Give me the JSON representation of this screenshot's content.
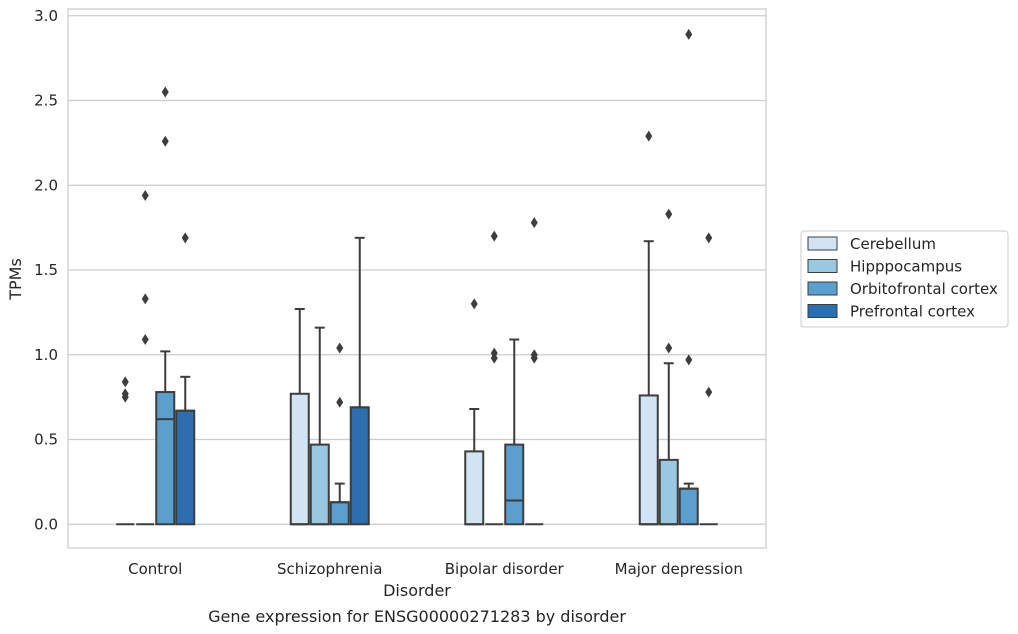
{
  "chart_data": {
    "type": "box",
    "xlabel": "Disorder",
    "ylabel": "TPMs",
    "caption": "Gene expression for ENSG00000271283 by disorder",
    "categories": [
      "Control",
      "Schizophrenia",
      "Bipolar disorder",
      "Major depression"
    ],
    "yticks": [
      "0.0",
      "0.5",
      "1.0",
      "1.5",
      "2.0",
      "2.5",
      "3.0"
    ],
    "ylim": [
      -0.14,
      3.04
    ],
    "grid": true,
    "legend_position": "right",
    "series": [
      {
        "name": "Cerebellum",
        "color": "#d2e3f3",
        "boxes": [
          {
            "q1": 0,
            "median": 0,
            "q3": 0,
            "whisker_low": 0,
            "whisker_high": 0,
            "outliers": [
              0.84,
              0.77,
              0.75
            ]
          },
          {
            "q1": 0,
            "median": 0,
            "q3": 0.77,
            "whisker_low": 0,
            "whisker_high": 1.27,
            "outliers": []
          },
          {
            "q1": 0,
            "median": 0,
            "q3": 0.43,
            "whisker_low": 0,
            "whisker_high": 0.68,
            "outliers": [
              1.3
            ]
          },
          {
            "q1": 0,
            "median": 0,
            "q3": 0.76,
            "whisker_low": 0,
            "whisker_high": 1.67,
            "outliers": [
              2.29
            ]
          }
        ]
      },
      {
        "name": "Hipppocampus",
        "color": "#9ac8e0",
        "boxes": [
          {
            "q1": 0,
            "median": 0,
            "q3": 0,
            "whisker_low": 0,
            "whisker_high": 0,
            "outliers": [
              1.94,
              1.33,
              1.09
            ]
          },
          {
            "q1": 0,
            "median": 0,
            "q3": 0.47,
            "whisker_low": 0,
            "whisker_high": 1.16,
            "outliers": []
          },
          {
            "q1": 0,
            "median": 0,
            "q3": 0,
            "whisker_low": 0,
            "whisker_high": 0,
            "outliers": [
              1.7,
              1.01,
              0.98
            ]
          },
          {
            "q1": 0,
            "median": 0,
            "q3": 0.38,
            "whisker_low": 0,
            "whisker_high": 0.95,
            "outliers": [
              1.83,
              1.04
            ]
          }
        ]
      },
      {
        "name": "Orbitofrontal cortex",
        "color": "#5a9fcd",
        "boxes": [
          {
            "q1": 0,
            "median": 0.62,
            "q3": 0.78,
            "whisker_low": 0,
            "whisker_high": 1.02,
            "outliers": [
              2.55,
              2.26
            ]
          },
          {
            "q1": 0,
            "median": 0.13,
            "q3": 0.13,
            "whisker_low": 0,
            "whisker_high": 0.24,
            "outliers": [
              1.04,
              0.72
            ]
          },
          {
            "q1": 0,
            "median": 0.14,
            "q3": 0.47,
            "whisker_low": 0,
            "whisker_high": 1.09,
            "outliers": []
          },
          {
            "q1": 0,
            "median": 0.21,
            "q3": 0.21,
            "whisker_low": 0,
            "whisker_high": 0.24,
            "outliers": [
              2.89,
              0.97
            ]
          }
        ]
      },
      {
        "name": "Prefrontal cortex",
        "color": "#2d6fae",
        "boxes": [
          {
            "q1": 0,
            "median": 0.67,
            "q3": 0.67,
            "whisker_low": 0,
            "whisker_high": 0.87,
            "outliers": [
              1.69
            ]
          },
          {
            "q1": 0,
            "median": 0.69,
            "q3": 0.69,
            "whisker_low": 0,
            "whisker_high": 1.69,
            "outliers": []
          },
          {
            "q1": 0,
            "median": 0,
            "q3": 0,
            "whisker_low": 0,
            "whisker_high": 0,
            "outliers": [
              1.78,
              1.0,
              0.98
            ]
          },
          {
            "q1": 0,
            "median": 0,
            "q3": 0,
            "whisker_low": 0,
            "whisker_high": 0,
            "outliers": [
              1.69,
              0.78
            ]
          }
        ]
      }
    ]
  }
}
